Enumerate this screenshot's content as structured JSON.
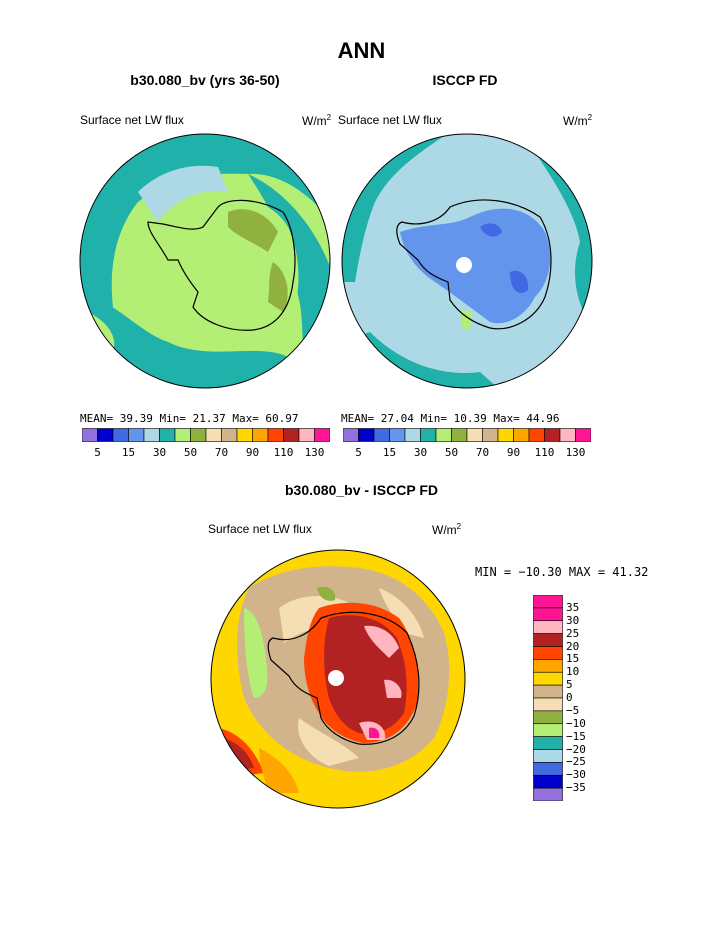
{
  "page": {
    "title": "ANN",
    "left_title": "b30.080_bv (yrs 36-50)",
    "right_title": "ISCCP FD",
    "diff_title": "b30.080_bv - ISCCP FD"
  },
  "left_panel": {
    "variable": "Surface net LW flux",
    "units_base": "W/m",
    "units_exp": "2",
    "stats": "MEAN=  39.39  Min=  21.37  Max=  60.97",
    "colorbar_ticks": [
      "5",
      "15",
      "30",
      "50",
      "70",
      "90",
      "110",
      "130"
    ]
  },
  "right_panel": {
    "variable": "Surface net LW flux",
    "units_base": "W/m",
    "units_exp": "2",
    "stats": "MEAN=  27.04  Min=  10.39  Max=  44.96",
    "colorbar_ticks": [
      "5",
      "15",
      "30",
      "50",
      "70",
      "90",
      "110",
      "130"
    ]
  },
  "diff_panel": {
    "variable": "Surface net LW flux",
    "units_base": "W/m",
    "units_exp": "2",
    "stats": "MIN = −10.30 MAX =  41.32",
    "colorbar_ticks": [
      "35",
      "30",
      "25",
      "20",
      "15",
      "10",
      "5",
      "0",
      "−5",
      "−10",
      "−15",
      "−20",
      "−25",
      "−30",
      "−35"
    ]
  },
  "colors": {
    "abs_scale": [
      "#9370db",
      "#0000cd",
      "#4169e1",
      "#6495ed",
      "#add8e6",
      "#20b2aa",
      "#b3ee75",
      "#90b040",
      "#f5deb3",
      "#d2b48c",
      "#ffd700",
      "#ffa500",
      "#ff4500",
      "#b22222",
      "#ffb6c1",
      "#ff1493"
    ],
    "diff_scale": [
      "#ff1493",
      "#ffb6c1",
      "#b22222",
      "#ff4500",
      "#ffa500",
      "#ffd700",
      "#d2b48c",
      "#f5deb3",
      "#90b040",
      "#b3ee75",
      "#20b2aa",
      "#add8e6",
      "#4169e1",
      "#0000cd",
      "#9370db"
    ]
  }
}
